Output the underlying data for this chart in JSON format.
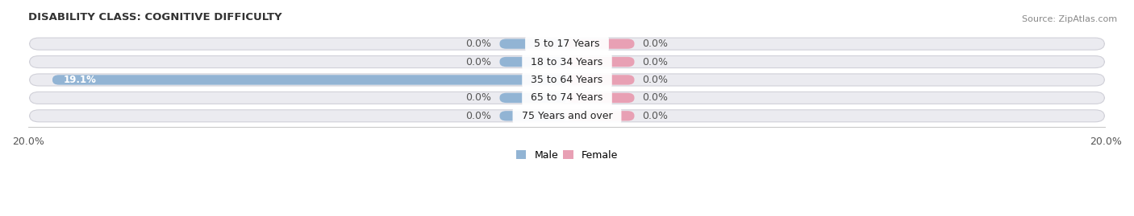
{
  "title": "DISABILITY CLASS: COGNITIVE DIFFICULTY",
  "source": "Source: ZipAtlas.com",
  "categories": [
    "5 to 17 Years",
    "18 to 34 Years",
    "35 to 64 Years",
    "65 to 74 Years",
    "75 Years and over"
  ],
  "male_values": [
    0.0,
    0.0,
    19.1,
    0.0,
    0.0
  ],
  "female_values": [
    0.0,
    0.0,
    0.0,
    0.0,
    0.0
  ],
  "xlim": 20.0,
  "male_color": "#92b4d4",
  "female_color": "#e8a0b4",
  "row_bg_color": "#ebebf0",
  "title_fontsize": 9.5,
  "label_fontsize": 9,
  "tick_fontsize": 9,
  "source_fontsize": 8,
  "small_bar_width": 2.5,
  "bar_height": 0.55
}
